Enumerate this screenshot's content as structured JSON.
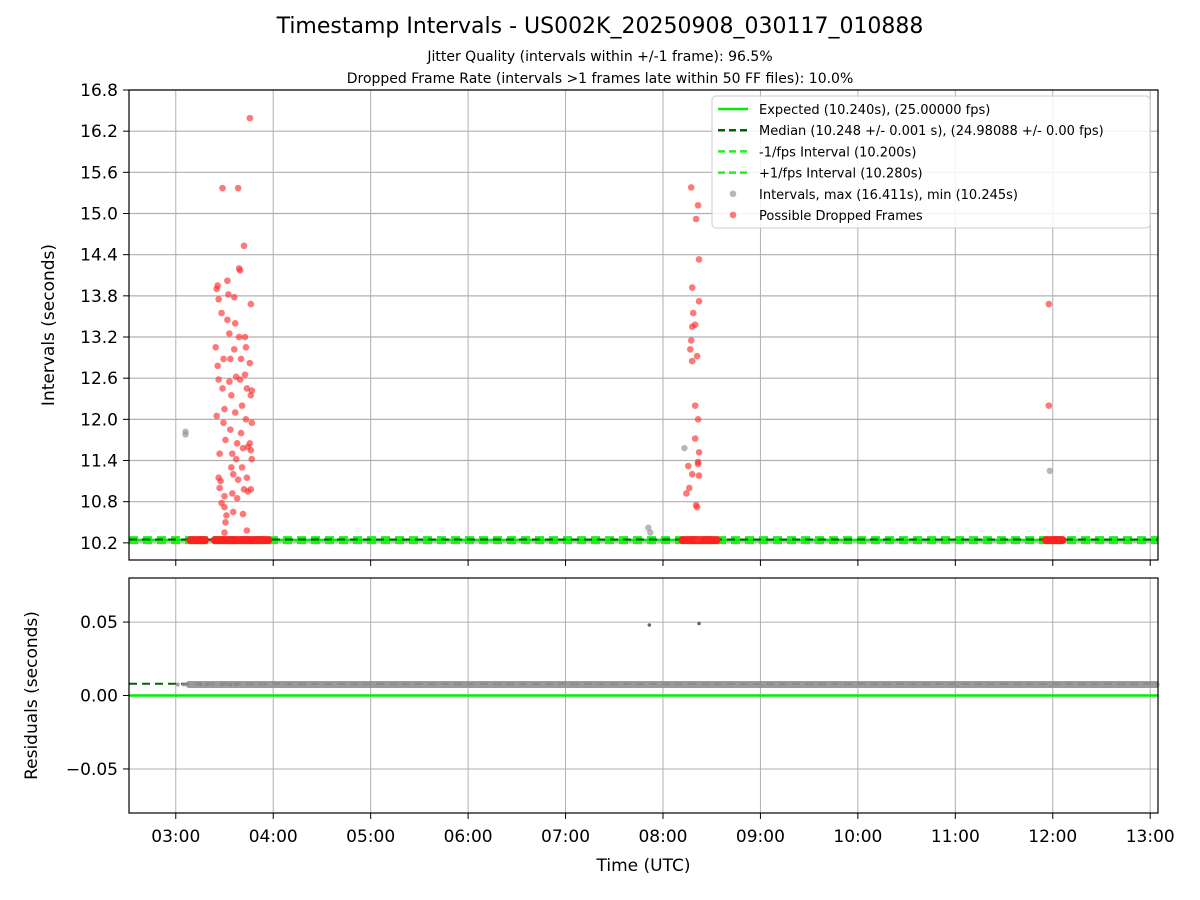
{
  "chart_data": {
    "title": "Timestamp Intervals - US002K_20250908_030117_010888",
    "subtitle_lines": [
      "Jitter Quality (intervals within +/-1 frame): 96.5%",
      "Dropped Frame Rate (intervals >1 frames late within 50 FF files): 10.0%"
    ],
    "xlabel": "Time (UTC)",
    "x_unit": "hours UTC",
    "xlim": [
      2.52,
      13.08
    ],
    "x_ticks": [
      3,
      4,
      5,
      6,
      7,
      8,
      9,
      10,
      11,
      12,
      13
    ],
    "x_tick_labels": [
      "03:00",
      "04:00",
      "05:00",
      "06:00",
      "07:00",
      "08:00",
      "09:00",
      "10:00",
      "11:00",
      "12:00",
      "13:00"
    ],
    "top_panel": {
      "type": "scatter",
      "ylabel": "Intervals (seconds)",
      "ylim": [
        9.95,
        16.8
      ],
      "y_ticks": [
        10.2,
        10.8,
        11.4,
        12.0,
        12.6,
        13.2,
        13.8,
        14.4,
        15.0,
        15.6,
        16.2,
        16.8
      ],
      "y_tick_labels": [
        "10.2",
        "10.8",
        "11.4",
        "12.0",
        "12.6",
        "13.2",
        "13.8",
        "14.4",
        "15.0",
        "15.6",
        "16.2",
        "16.8"
      ],
      "grid": "both",
      "legend_position": "top-right",
      "expected": 10.24,
      "median": 10.248,
      "lower": 10.2,
      "upper": 10.28,
      "legend": [
        {
          "label": "Expected (10.240s), (25.00000 fps)",
          "kind": "line",
          "color": "#00ee00",
          "dash": false
        },
        {
          "label": "Median (10.248 +/- 0.001 s), (24.98088 +/- 0.00 fps)",
          "kind": "line",
          "color": "#006400",
          "dash": true
        },
        {
          "label": "-1/fps Interval (10.200s)",
          "kind": "line",
          "color": "#22ee22",
          "dash": true
        },
        {
          "label": "+1/fps Interval (10.280s)",
          "kind": "line",
          "color": "#22ee22",
          "dash": true
        },
        {
          "label": "Intervals, max (16.411s), min (10.245s)",
          "kind": "dot",
          "color": "#999999"
        },
        {
          "label": "Possible Dropped Frames",
          "kind": "dot",
          "color": "#ff4040"
        }
      ],
      "normal_intervals": [
        [
          3.1,
          11.82
        ],
        [
          3.1,
          11.78
        ],
        [
          7.85,
          10.42
        ],
        [
          7.87,
          10.35
        ],
        [
          8.22,
          11.58
        ],
        [
          11.97,
          11.25
        ]
      ],
      "dropped_frames": [
        [
          3.42,
          13.9
        ],
        [
          3.43,
          13.95
        ],
        [
          3.44,
          13.75
        ],
        [
          3.41,
          13.05
        ],
        [
          3.43,
          12.78
        ],
        [
          3.44,
          12.58
        ],
        [
          3.42,
          12.05
        ],
        [
          3.45,
          11.5
        ],
        [
          3.44,
          11.15
        ],
        [
          3.46,
          11.1
        ],
        [
          3.45,
          11.0
        ],
        [
          3.47,
          10.78
        ],
        [
          3.48,
          15.37
        ],
        [
          3.47,
          13.55
        ],
        [
          3.49,
          12.88
        ],
        [
          3.48,
          12.45
        ],
        [
          3.5,
          12.15
        ],
        [
          3.49,
          11.95
        ],
        [
          3.51,
          11.7
        ],
        [
          3.5,
          10.88
        ],
        [
          3.5,
          10.72
        ],
        [
          3.52,
          10.6
        ],
        [
          3.51,
          10.5
        ],
        [
          3.5,
          10.35
        ],
        [
          3.53,
          14.02
        ],
        [
          3.54,
          13.82
        ],
        [
          3.53,
          13.45
        ],
        [
          3.55,
          13.25
        ],
        [
          3.56,
          12.88
        ],
        [
          3.55,
          12.55
        ],
        [
          3.57,
          12.35
        ],
        [
          3.56,
          11.85
        ],
        [
          3.58,
          11.5
        ],
        [
          3.57,
          11.3
        ],
        [
          3.59,
          11.2
        ],
        [
          3.58,
          10.92
        ],
        [
          3.59,
          10.65
        ],
        [
          3.6,
          13.78
        ],
        [
          3.61,
          13.4
        ],
        [
          3.6,
          13.02
        ],
        [
          3.62,
          12.62
        ],
        [
          3.61,
          12.1
        ],
        [
          3.63,
          11.65
        ],
        [
          3.62,
          11.42
        ],
        [
          3.64,
          11.12
        ],
        [
          3.63,
          10.85
        ],
        [
          3.64,
          15.37
        ],
        [
          3.65,
          14.2
        ],
        [
          3.66,
          14.17
        ],
        [
          3.65,
          13.2
        ],
        [
          3.67,
          12.88
        ],
        [
          3.66,
          12.58
        ],
        [
          3.68,
          12.2
        ],
        [
          3.67,
          11.8
        ],
        [
          3.69,
          11.58
        ],
        [
          3.68,
          11.3
        ],
        [
          3.7,
          10.98
        ],
        [
          3.69,
          10.62
        ],
        [
          3.7,
          14.53
        ],
        [
          3.71,
          13.2
        ],
        [
          3.72,
          13.05
        ],
        [
          3.71,
          12.65
        ],
        [
          3.73,
          12.45
        ],
        [
          3.72,
          12.0
        ],
        [
          3.74,
          11.6
        ],
        [
          3.73,
          11.15
        ],
        [
          3.74,
          10.95
        ],
        [
          3.73,
          10.38
        ],
        [
          3.76,
          16.39
        ],
        [
          3.77,
          13.68
        ],
        [
          3.76,
          12.82
        ],
        [
          3.78,
          12.42
        ],
        [
          3.77,
          12.35
        ],
        [
          3.78,
          11.95
        ],
        [
          3.76,
          11.65
        ],
        [
          3.77,
          11.55
        ],
        [
          3.78,
          11.42
        ],
        [
          3.77,
          10.98
        ],
        [
          8.29,
          15.38
        ],
        [
          8.36,
          15.12
        ],
        [
          8.34,
          14.92
        ],
        [
          8.37,
          14.33
        ],
        [
          8.3,
          13.92
        ],
        [
          8.37,
          13.72
        ],
        [
          8.31,
          13.55
        ],
        [
          8.3,
          13.35
        ],
        [
          8.33,
          13.38
        ],
        [
          8.29,
          13.15
        ],
        [
          8.28,
          13.02
        ],
        [
          8.35,
          12.92
        ],
        [
          8.3,
          12.85
        ],
        [
          8.33,
          12.2
        ],
        [
          8.36,
          12.0
        ],
        [
          8.33,
          11.72
        ],
        [
          8.37,
          11.52
        ],
        [
          8.36,
          11.38
        ],
        [
          8.36,
          11.35
        ],
        [
          8.37,
          11.18
        ],
        [
          8.26,
          11.32
        ],
        [
          8.3,
          11.2
        ],
        [
          8.27,
          11.0
        ],
        [
          8.24,
          10.92
        ],
        [
          8.34,
          10.75
        ],
        [
          8.35,
          10.72
        ],
        [
          8.36,
          10.25
        ],
        [
          11.96,
          13.68
        ],
        [
          11.96,
          12.2
        ]
      ],
      "dropped_band_segments": [
        [
          3.15,
          3.3
        ],
        [
          3.4,
          3.95
        ],
        [
          8.2,
          8.55
        ],
        [
          11.93,
          12.1
        ]
      ]
    },
    "bottom_panel": {
      "type": "scatter",
      "ylabel": "Residuals (seconds)",
      "ylim": [
        -0.08,
        0.08
      ],
      "y_ticks": [
        -0.05,
        0.0,
        0.05
      ],
      "y_tick_labels": [
        "−0.05",
        "0.00",
        "0.05"
      ],
      "grid": "both",
      "expected_residual": 0.0,
      "median_residual": 0.008,
      "residual_band": {
        "x_start": 3.0,
        "x_end": 13.08,
        "y": 0.0075
      },
      "outliers": [
        [
          7.86,
          0.048
        ],
        [
          8.37,
          0.049
        ]
      ]
    }
  }
}
